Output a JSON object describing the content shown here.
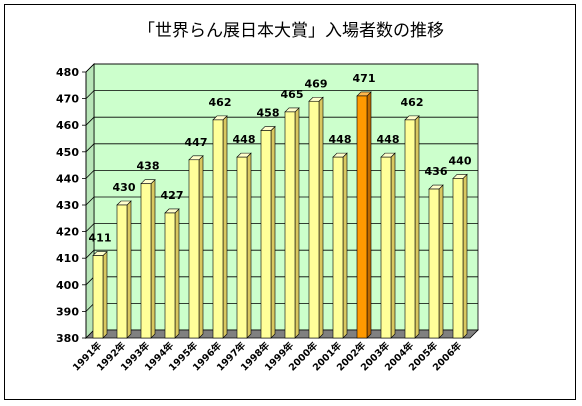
{
  "chart_data": {
    "type": "bar",
    "title": "「世界らん展日本大賞」入場者数の推移",
    "xlabel": "",
    "ylabel": "",
    "categories": [
      "1991年",
      "1992年",
      "1993年",
      "1994年",
      "1995年",
      "1996年",
      "1997年",
      "1998年",
      "1999年",
      "2000年",
      "2001年",
      "2002年",
      "2003年",
      "2004年",
      "2005年",
      "2006年"
    ],
    "series": [
      {
        "values": [
          411,
          430,
          438,
          427,
          447,
          462,
          448,
          458,
          465,
          469,
          448,
          471,
          448,
          462,
          436,
          440
        ]
      }
    ],
    "ylim": [
      380,
      480
    ],
    "yticks": [
      380,
      390,
      400,
      410,
      420,
      430,
      440,
      450,
      460,
      470,
      480
    ],
    "grid": true,
    "legend": "none",
    "highlight_category": "2002年",
    "colors": {
      "plot_background": "#ccffcc",
      "bar": "#ffff99",
      "bar_highlight": "#ff9900",
      "floor": "#808080",
      "gridline": "#000000"
    }
  }
}
